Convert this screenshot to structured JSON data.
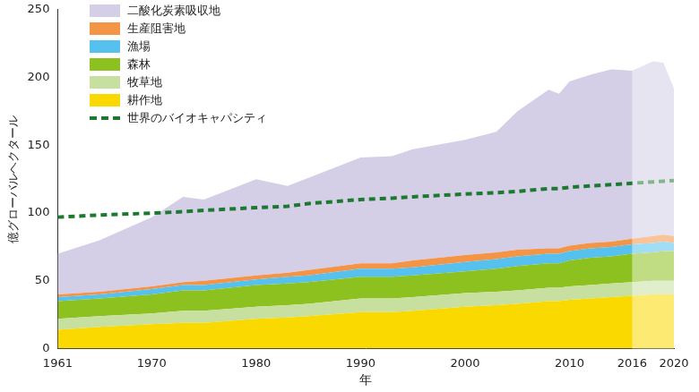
{
  "chart_data": {
    "type": "area",
    "x": [
      1961,
      1965,
      1970,
      1973,
      1975,
      1980,
      1983,
      1985,
      1990,
      1993,
      1995,
      2000,
      2003,
      2005,
      2008,
      2009,
      2010,
      2012,
      2014,
      2016,
      2018,
      2019,
      2020
    ],
    "xlim": [
      1961,
      2020
    ],
    "xticks": [
      1961,
      1970,
      1980,
      1990,
      2000,
      2010,
      2016,
      2020
    ],
    "ylim": [
      0,
      250
    ],
    "yticks": [
      0,
      50,
      100,
      150,
      200,
      250
    ],
    "x_label": "年",
    "y_label": "億グローバルヘクタール",
    "stacked": true,
    "grid": false,
    "legend": "top-left",
    "projection_from": 2016,
    "series": [
      {
        "name": "二酸化炭素吸収地",
        "color": "#d4cee7",
        "type": "area",
        "values": [
          30,
          38,
          51,
          63,
          60,
          71,
          64,
          68,
          78,
          79,
          82,
          85,
          89,
          102,
          117,
          114,
          121,
          124,
          127,
          124,
          129,
          127,
          109
        ]
      },
      {
        "name": "生産阻害地",
        "color": "#f39447",
        "type": "area",
        "values": [
          2,
          2,
          2,
          2,
          3,
          3,
          3,
          4,
          4,
          4,
          5,
          5,
          5,
          5,
          4,
          4,
          4,
          4,
          4,
          4,
          5,
          5,
          5
        ]
      },
      {
        "name": "漁場",
        "color": "#56c1ef",
        "type": "area",
        "values": [
          3,
          3,
          4,
          4,
          4,
          4,
          5,
          5,
          6,
          6,
          6,
          7,
          7,
          7,
          7,
          7,
          7,
          7,
          7,
          7,
          7,
          7,
          6
        ]
      },
      {
        "name": "森林",
        "color": "#8cc11f",
        "type": "area",
        "values": [
          13,
          13,
          14,
          15,
          15,
          16,
          16,
          16,
          16,
          16,
          16,
          16,
          17,
          18,
          18,
          18,
          19,
          20,
          20,
          21,
          21,
          22,
          22
        ]
      },
      {
        "name": "牧草地",
        "color": "#c7e0a0",
        "type": "area",
        "values": [
          8,
          8,
          8,
          9,
          9,
          9,
          9,
          9,
          10,
          10,
          10,
          10,
          10,
          10,
          10,
          10,
          10,
          10,
          10,
          10,
          10,
          10,
          10
        ]
      },
      {
        "name": "耕作地",
        "color": "#f9d900",
        "type": "area",
        "values": [
          14,
          16,
          18,
          19,
          19,
          22,
          23,
          24,
          27,
          27,
          28,
          31,
          32,
          33,
          35,
          35,
          36,
          37,
          38,
          39,
          40,
          40,
          40
        ]
      },
      {
        "name": "世界のバイオキャパシティ",
        "color": "#1b7a30",
        "type": "line",
        "line_style": "dashed",
        "values": [
          97,
          98.5,
          100,
          101,
          102,
          104,
          105,
          107,
          110,
          111,
          112,
          114,
          115,
          116,
          118,
          118,
          119,
          120,
          121,
          122,
          123,
          123.5,
          124
        ]
      }
    ]
  }
}
